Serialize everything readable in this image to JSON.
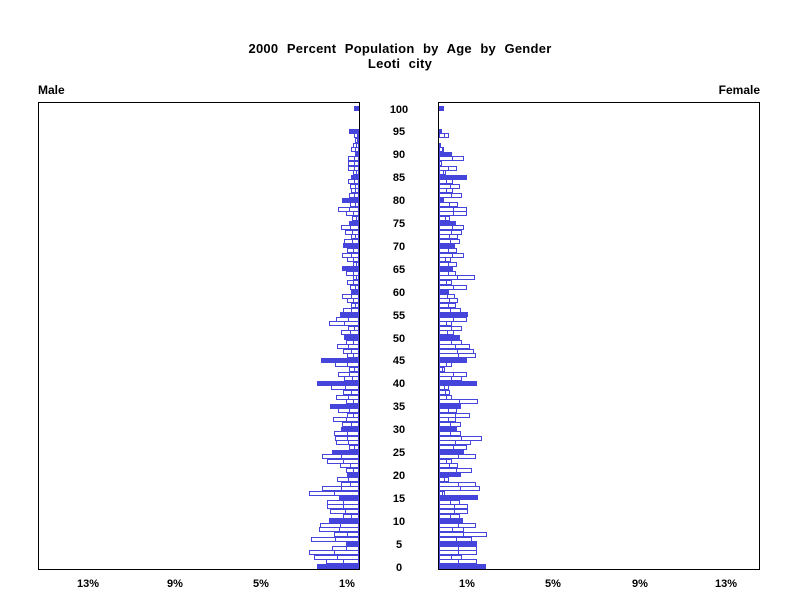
{
  "title": {
    "line1": "2000 Percent Population by Age by Gender",
    "line2": "Leoti city"
  },
  "panels": {
    "male_label": "Male",
    "female_label": "Female"
  },
  "axes": {
    "age_tick_labels": [
      "0",
      "5",
      "10",
      "15",
      "20",
      "25",
      "30",
      "35",
      "40",
      "45",
      "50",
      "55",
      "60",
      "65",
      "70",
      "75",
      "80",
      "85",
      "90",
      "95",
      "100"
    ],
    "male_x_tick_labels": [
      "13%",
      "9%",
      "5%",
      "1%"
    ],
    "female_x_tick_labels": [
      "1%",
      "5%",
      "9%",
      "13%"
    ]
  },
  "colors": {
    "bar_blue": "#4545DC",
    "panel_border": "#000000",
    "background": "#FFFFFF",
    "text": "#000000"
  },
  "chart_data": {
    "type": "bar",
    "subtype": "population-pyramid",
    "title": "2000 Percent Population by Age by Gender",
    "subtitle": "Leoti city",
    "orientation": "horizontal",
    "x_unit": "percent of total population",
    "xlim": [
      0,
      15
    ],
    "x_tick_values": [
      1,
      5,
      9,
      13
    ],
    "male_axis_direction": "values increase leftward",
    "female_axis_direction": "values increase rightward",
    "age_min": 0,
    "age_max": 100,
    "age_step": 1,
    "age_axis_tick_values": [
      0,
      5,
      10,
      15,
      20,
      25,
      30,
      35,
      40,
      45,
      50,
      55,
      60,
      65,
      70,
      75,
      80,
      85,
      90,
      95,
      100
    ],
    "bar_style_rule": "bars for ages divisible by 5 are solid blue; all other ages are hollow white bars with blue outline and a blue tick at the bar midpoint",
    "legend": "none",
    "grid": "off",
    "series": [
      {
        "name": "Male",
        "panel": "left",
        "values": [
          1.94,
          1.55,
          2.1,
          2.31,
          1.25,
          0.6,
          2.2,
          1.14,
          1.83,
          1.79,
          1.37,
          0.75,
          1.36,
          1.48,
          1.48,
          0.92,
          2.31,
          1.71,
          0.85,
          1.0,
          0.57,
          0.6,
          0.87,
          1.48,
          1.73,
          1.25,
          0.45,
          1.05,
          1.1,
          1.15,
          0.82,
          0.8,
          1.2,
          0.55,
          0.95,
          1.33,
          0.6,
          1.05,
          0.75,
          1.3,
          1.95,
          0.7,
          0.95,
          0.45,
          1.1,
          1.74,
          0.55,
          0.75,
          1.0,
          0.6,
          0.69,
          0.85,
          0.5,
          1.37,
          1.05,
          0.9,
          0.75,
          0.35,
          0.55,
          0.8,
          0.35,
          0.4,
          0.55,
          0.3,
          0.6,
          0.8,
          0.3,
          0.55,
          0.8,
          0.55,
          0.75,
          0.7,
          0.35,
          0.65,
          0.85,
          0.45,
          0.34,
          0.61,
          0.95,
          0.41,
          0.79,
          0.45,
          0.35,
          0.43,
          0.53,
          0.35,
          0.28,
          0.53,
          0.49,
          0.53,
          0.18,
          0.38,
          0.3,
          0.18,
          0.23,
          0.46,
          0,
          0,
          0,
          0,
          0.23
        ]
      },
      {
        "name": "Female",
        "panel": "right",
        "values": [
          2.16,
          1.77,
          1.06,
          1.77,
          1.77,
          1.77,
          1.51,
          2.2,
          1.16,
          1.7,
          1.09,
          0.95,
          1.32,
          1.32,
          0.98,
          1.8,
          0.3,
          1.9,
          1.73,
          0.47,
          1.04,
          1.51,
          0.86,
          0.6,
          1.7,
          1.16,
          1.3,
          1.5,
          2.0,
          1.0,
          0.85,
          1.0,
          0.8,
          1.45,
          0.85,
          1.0,
          1.8,
          0.6,
          0.5,
          0.45,
          1.77,
          1.05,
          1.31,
          0.3,
          0.6,
          1.31,
          1.7,
          1.6,
          1.45,
          1.05,
          0.98,
          0.7,
          1.05,
          0.6,
          1.31,
          1.35,
          1.0,
          0.8,
          0.9,
          0.75,
          0.47,
          1.31,
          0.6,
          1.66,
          0.8,
          0.67,
          0.85,
          0.55,
          1.16,
          0.82,
          0.73,
          0.95,
          0.9,
          1.05,
          1.16,
          0.78,
          0.5,
          1.28,
          1.28,
          0.9,
          0.21,
          1.05,
          0.67,
          0.98,
          0.67,
          1.31,
          0.32,
          0.82,
          0.14,
          1.16,
          0.58,
          0.24,
          0.1,
          0,
          0.47,
          0.14,
          0,
          0,
          0,
          0,
          0.24
        ]
      }
    ]
  }
}
